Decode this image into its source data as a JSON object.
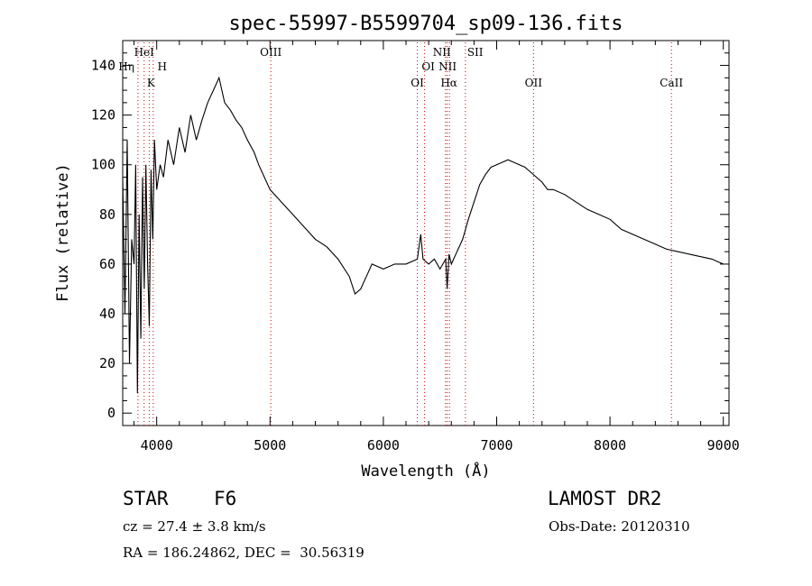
{
  "chart_data": {
    "type": "line",
    "title": "spec-55997-B5599704_sp09-136.fits",
    "xlabel": "Wavelength (Å)",
    "ylabel": "Flux (relative)",
    "xlim": [
      3700,
      9050
    ],
    "ylim": [
      -5,
      150
    ],
    "xticks": [
      4000,
      5000,
      6000,
      7000,
      8000,
      9000
    ],
    "yticks": [
      0,
      20,
      40,
      60,
      80,
      100,
      120,
      140
    ],
    "grid": false,
    "line_color": "#000000",
    "marker_color": "#cc0000",
    "series": [
      {
        "x": [
          3700,
          3720,
          3740,
          3760,
          3780,
          3800,
          3815,
          3830,
          3845,
          3860,
          3875,
          3890,
          3905,
          3920,
          3935,
          3950,
          3965,
          3980,
          4000,
          4030,
          4060,
          4100,
          4150,
          4200,
          4250,
          4300,
          4350,
          4400,
          4450,
          4500,
          4550,
          4600,
          4650,
          4700,
          4750,
          4800,
          4860,
          4900,
          4950,
          5000,
          5100,
          5200,
          5300,
          5400,
          5500,
          5600,
          5700,
          5750,
          5800,
          5850,
          5900,
          6000,
          6100,
          6200,
          6300,
          6330,
          6350,
          6400,
          6450,
          6500,
          6550,
          6563,
          6580,
          6600,
          6650,
          6700,
          6750,
          6800,
          6850,
          6900,
          6950,
          7000,
          7050,
          7100,
          7150,
          7200,
          7250,
          7300,
          7350,
          7400,
          7450,
          7500,
          7600,
          7700,
          7800,
          7900,
          8000,
          8100,
          8200,
          8300,
          8400,
          8500,
          8600,
          8700,
          8800,
          8900,
          8950,
          9000
        ],
        "y": [
          95,
          40,
          110,
          20,
          70,
          60,
          100,
          8,
          80,
          30,
          95,
          50,
          100,
          60,
          35,
          98,
          70,
          110,
          90,
          100,
          95,
          110,
          100,
          115,
          105,
          120,
          110,
          118,
          125,
          130,
          135,
          125,
          122,
          118,
          115,
          110,
          105,
          100,
          95,
          90,
          85,
          80,
          75,
          70,
          67,
          62,
          55,
          48,
          50,
          55,
          60,
          58,
          60,
          60,
          62,
          72,
          62,
          60,
          62,
          58,
          62,
          50,
          64,
          60,
          65,
          70,
          78,
          85,
          92,
          96,
          99,
          100,
          101,
          102,
          101,
          100,
          99,
          97,
          95,
          93,
          90,
          90,
          88,
          85,
          82,
          80,
          78,
          74,
          72,
          70,
          68,
          66,
          65,
          64,
          63,
          62,
          61,
          60
        ]
      }
    ],
    "lines": [
      {
        "label": "HeI",
        "x": 3889
      },
      {
        "label": "Hη",
        "x": 3835
      },
      {
        "label": "H",
        "x": 3969
      },
      {
        "label": "K",
        "x": 3934
      },
      {
        "label": "OIII",
        "x": 5007
      },
      {
        "label": "OI",
        "x": 6300
      },
      {
        "label": "OI",
        "x": 6364
      },
      {
        "label": "NII",
        "x": 6548
      },
      {
        "label": "Hα",
        "x": 6563
      },
      {
        "label": "NII",
        "x": 6583
      },
      {
        "label": "SII",
        "x": 6724
      },
      {
        "label": "OII",
        "x": 7325
      },
      {
        "label": "CaII",
        "x": 8542
      }
    ]
  },
  "info": {
    "object_class": "STAR",
    "subclass": "F6",
    "survey": "LAMOST DR2",
    "cz": "cz = 27.4 ± 3.8 km/s",
    "obs_date": "Obs-Date: 20120310",
    "coords": "RA = 186.24862, DEC =  30.56319"
  }
}
